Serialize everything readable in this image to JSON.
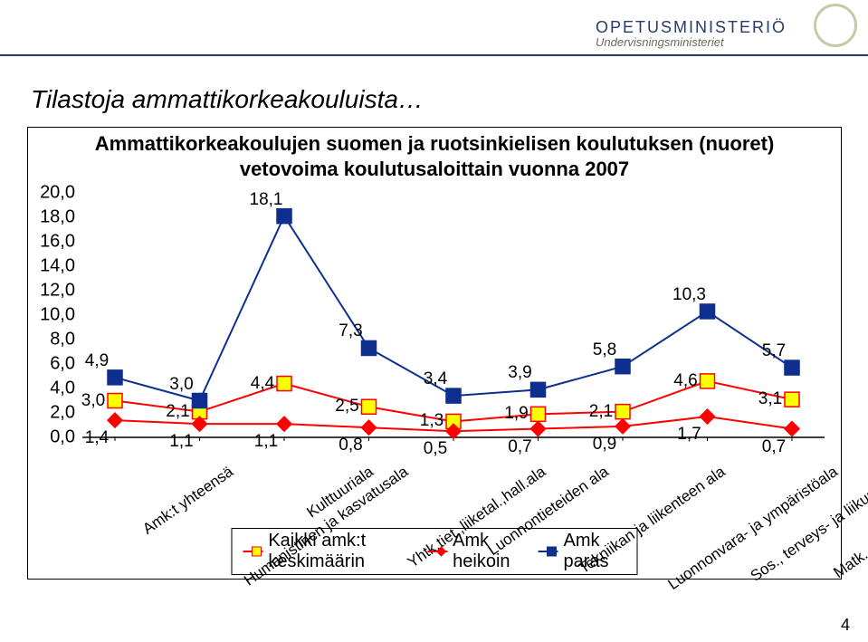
{
  "header": {
    "ministry_line1": "OPETUSMINISTERIÖ",
    "ministry_line2": "Undervisningsministeriet"
  },
  "page": {
    "title": "Tilastoja ammattikorkeakouluista…",
    "page_number": "4"
  },
  "chart": {
    "type": "line",
    "title_line1": "Ammattikorkeakoulujen suomen ja ruotsinkielisen koulutuksen (nuoret)",
    "title_line2": "vetovoima koulutusaloittain vuonna 2007",
    "categories": [
      "Amk:t yhteensä",
      "Humanistinen ja kasvatusala",
      "Kulttuuriala",
      "Yhtk.tiet.,liiketal.,hall.ala",
      "Luonnontieteiden ala",
      "Tekniikan ja liikenteen ala",
      "Luonnonvara- ja ympäristöala",
      "Sos., terveys- ja liikunta-ala",
      "Matk., ravitsemis- ja tal.ala"
    ],
    "ylim": [
      0,
      20
    ],
    "ytick_step": 2,
    "gridline_color": "#000000",
    "background": "#ffffff",
    "series": [
      {
        "name": "Kaikki amk:t keskimäärin",
        "color": "#ff0000",
        "marker_fill": "#ffff00",
        "marker_stroke": "#ff0000",
        "marker_size": 8,
        "line_width": 2,
        "marker": "square",
        "label_fontsize": 19,
        "label_pos": "center",
        "values": [
          3.0,
          2.1,
          4.4,
          2.5,
          1.3,
          1.9,
          2.1,
          4.6,
          3.1
        ],
        "labels": [
          "3,0",
          "2,1",
          "4,4",
          "2,5",
          "1,3",
          "1,9",
          "2,1",
          "4,6",
          "3,1"
        ]
      },
      {
        "name": "Amk heikoin",
        "color": "#ff0000",
        "marker_fill": "#ff0000",
        "marker_stroke": "#ff0000",
        "marker_size": 8,
        "line_width": 2,
        "marker": "diamond",
        "label_fontsize": 19,
        "label_pos": "below",
        "values": [
          1.4,
          1.1,
          1.1,
          0.8,
          0.5,
          0.7,
          0.9,
          1.7,
          0.7
        ],
        "labels": [
          "1,4",
          "1,1",
          "1,1",
          "0,8",
          "0,5",
          "0,7",
          "0,9",
          "1,7",
          "0,7"
        ]
      },
      {
        "name": "Amk paras",
        "color": "#0f2f8f",
        "marker_fill": "#0f2f8f",
        "marker_stroke": "#0f2f8f",
        "marker_size": 8,
        "line_width": 2,
        "marker": "square",
        "label_fontsize": 19,
        "label_pos": "above",
        "values": [
          4.9,
          3.0,
          18.1,
          7.3,
          3.4,
          3.9,
          5.8,
          10.3,
          5.7
        ],
        "labels": [
          "4,9",
          "3,0",
          "18,1",
          "7,3",
          "3,4",
          "3,9",
          "5,8",
          "10,3",
          "5,7"
        ]
      }
    ],
    "legend": {
      "items": [
        "Kaikki amk:t keskimäärin",
        "Amk heikoin",
        "Amk paras"
      ]
    }
  }
}
